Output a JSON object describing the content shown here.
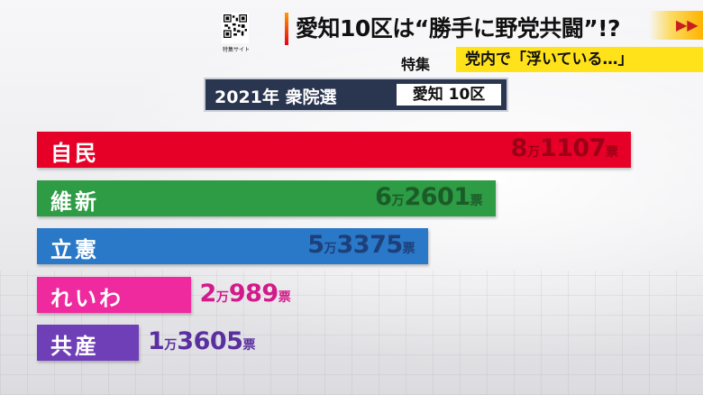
{
  "qr": {
    "label": "特集サイト"
  },
  "headline": "愛知10区は“勝手に野党共闘”!?",
  "feature_label": "特集",
  "subhead": "党内で「浮いている…」",
  "chart_title": {
    "year_label": "2021年 衆院選",
    "region_label": "愛知 10区"
  },
  "colors": {
    "jimin": "#e60028",
    "ishin": "#2e9b45",
    "rikken": "#2a78c8",
    "reiwa": "#ee2a9e",
    "kyosan": "#6f3fb8",
    "title_bg": "#2a3550",
    "subhead_bg": "#ffe21a"
  },
  "chart_data": {
    "type": "bar",
    "categories": [
      "自民",
      "維新",
      "立憲",
      "れいわ",
      "共産"
    ],
    "values": [
      81107,
      62601,
      53375,
      20989,
      13605
    ],
    "value_labels": [
      {
        "man": "8",
        "unit_man": "万",
        "rest": "1107",
        "unit": "票"
      },
      {
        "man": "6",
        "unit_man": "万",
        "rest": "2601",
        "unit": "票"
      },
      {
        "man": "5",
        "unit_man": "万",
        "rest": "3375",
        "unit": "票"
      },
      {
        "man": "2",
        "unit_man": "万",
        "rest": "989",
        "unit": "票"
      },
      {
        "man": "1",
        "unit_man": "万",
        "rest": "3605",
        "unit": "票"
      }
    ],
    "title": "2021年 衆院選 愛知 10区",
    "xlim": [
      0,
      81107
    ]
  }
}
